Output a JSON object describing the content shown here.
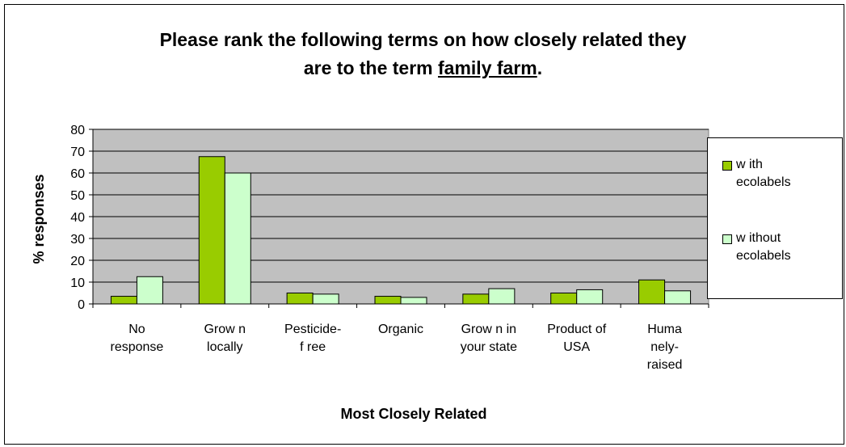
{
  "title": {
    "line1": "Please rank the following terms on how closely related they",
    "line2_prefix": "are to the term ",
    "line2_underlined": "family farm",
    "line2_suffix": "."
  },
  "chart_data": {
    "type": "bar",
    "title": "Please rank the following terms on how closely related they are to the term family farm.",
    "xlabel": "Most Closely Related",
    "ylabel": "% responses",
    "ylim": [
      0,
      80
    ],
    "yticks": [
      0,
      10,
      20,
      30,
      40,
      50,
      60,
      70,
      80
    ],
    "grid": true,
    "legend_position": "right",
    "categories": [
      [
        "No",
        "response"
      ],
      [
        "Grow n",
        "locally"
      ],
      [
        "Pesticide-",
        "f ree"
      ],
      [
        "Organic"
      ],
      [
        "Grow n in",
        "your state"
      ],
      [
        "Product of",
        "USA"
      ],
      [
        "Huma",
        "nely-",
        "raised"
      ]
    ],
    "series": [
      {
        "name": "w ith ecolabels",
        "legend_lines": [
          "w ith",
          "ecolabels"
        ],
        "color": "#99CC00",
        "values": [
          3.5,
          67.5,
          5,
          3.5,
          4.5,
          5,
          11
        ]
      },
      {
        "name": "w ithout ecolabels",
        "legend_lines": [
          "w ithout",
          "ecolabels"
        ],
        "color": "#CCFFCC",
        "values": [
          12.5,
          60,
          4.5,
          3,
          7,
          6.5,
          6
        ]
      }
    ],
    "plot_background": "#C0C0C0"
  }
}
